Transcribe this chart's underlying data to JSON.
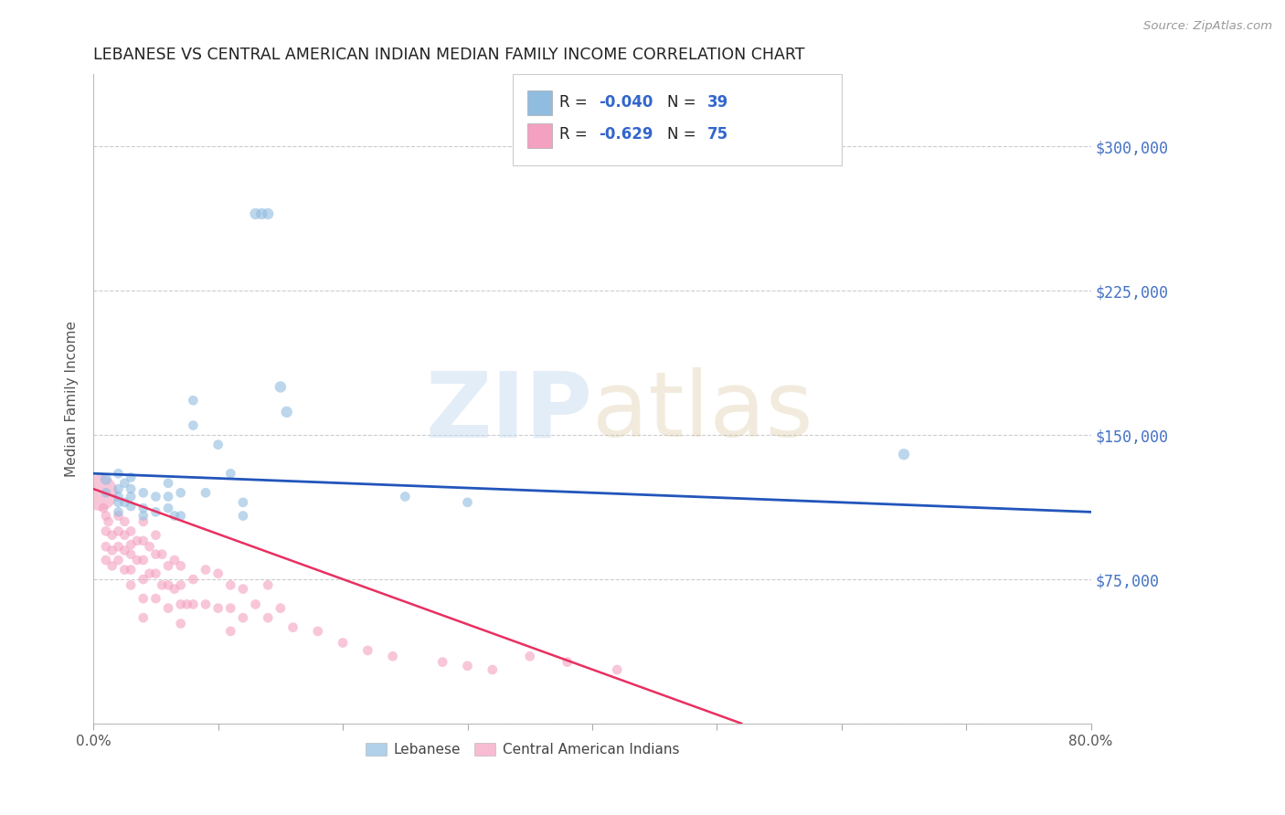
{
  "title": "LEBANESE VS CENTRAL AMERICAN INDIAN MEDIAN FAMILY INCOME CORRELATION CHART",
  "source": "Source: ZipAtlas.com",
  "ylabel": "Median Family Income",
  "xlim": [
    0.0,
    0.8
  ],
  "ylim": [
    0,
    337500
  ],
  "grid_color": "#cccccc",
  "background_color": "#ffffff",
  "legend_R_blue": "-0.040",
  "legend_N_blue": "39",
  "legend_R_pink": "-0.629",
  "legend_N_pink": "75",
  "blue_color": "#90bce0",
  "pink_color": "#f4a0c0",
  "blue_line_color": "#2255bb",
  "pink_line_color": "#e83060",
  "ytick_color": "#4472c4",
  "blue_scatter_x": [
    0.01,
    0.01,
    0.02,
    0.02,
    0.02,
    0.02,
    0.02,
    0.025,
    0.025,
    0.03,
    0.03,
    0.03,
    0.03,
    0.04,
    0.04,
    0.04,
    0.05,
    0.05,
    0.06,
    0.06,
    0.06,
    0.065,
    0.07,
    0.07,
    0.08,
    0.08,
    0.09,
    0.1,
    0.11,
    0.12,
    0.12,
    0.13,
    0.135,
    0.14,
    0.15,
    0.155,
    0.25,
    0.3,
    0.65
  ],
  "blue_scatter_y": [
    127000,
    120000,
    130000,
    122000,
    118000,
    115000,
    110000,
    125000,
    115000,
    128000,
    122000,
    118000,
    113000,
    120000,
    112000,
    108000,
    118000,
    110000,
    125000,
    118000,
    112000,
    108000,
    120000,
    108000,
    168000,
    155000,
    120000,
    145000,
    130000,
    115000,
    108000,
    265000,
    265000,
    265000,
    175000,
    162000,
    118000,
    115000,
    140000
  ],
  "blue_scatter_sizes": [
    80,
    60,
    60,
    60,
    60,
    60,
    60,
    60,
    60,
    60,
    60,
    60,
    60,
    60,
    60,
    60,
    60,
    60,
    60,
    60,
    60,
    60,
    60,
    60,
    60,
    60,
    60,
    60,
    60,
    60,
    60,
    80,
    80,
    80,
    80,
    80,
    60,
    60,
    80
  ],
  "pink_scatter_x": [
    0.005,
    0.008,
    0.01,
    0.01,
    0.01,
    0.01,
    0.012,
    0.015,
    0.015,
    0.015,
    0.02,
    0.02,
    0.02,
    0.02,
    0.025,
    0.025,
    0.025,
    0.025,
    0.03,
    0.03,
    0.03,
    0.03,
    0.03,
    0.035,
    0.035,
    0.04,
    0.04,
    0.04,
    0.04,
    0.04,
    0.04,
    0.045,
    0.045,
    0.05,
    0.05,
    0.05,
    0.05,
    0.055,
    0.055,
    0.06,
    0.06,
    0.06,
    0.065,
    0.065,
    0.07,
    0.07,
    0.07,
    0.07,
    0.075,
    0.08,
    0.08,
    0.09,
    0.09,
    0.1,
    0.1,
    0.11,
    0.11,
    0.11,
    0.12,
    0.12,
    0.13,
    0.14,
    0.14,
    0.15,
    0.16,
    0.18,
    0.2,
    0.22,
    0.24,
    0.28,
    0.3,
    0.32,
    0.35,
    0.38,
    0.42
  ],
  "pink_scatter_y": [
    120000,
    112000,
    108000,
    100000,
    92000,
    85000,
    105000,
    98000,
    90000,
    82000,
    108000,
    100000,
    92000,
    85000,
    105000,
    98000,
    90000,
    80000,
    100000,
    93000,
    88000,
    80000,
    72000,
    95000,
    85000,
    105000,
    95000,
    85000,
    75000,
    65000,
    55000,
    92000,
    78000,
    98000,
    88000,
    78000,
    65000,
    88000,
    72000,
    82000,
    72000,
    60000,
    85000,
    70000,
    82000,
    72000,
    62000,
    52000,
    62000,
    75000,
    62000,
    80000,
    62000,
    78000,
    60000,
    72000,
    60000,
    48000,
    70000,
    55000,
    62000,
    72000,
    55000,
    60000,
    50000,
    48000,
    42000,
    38000,
    35000,
    32000,
    30000,
    28000,
    35000,
    32000,
    28000
  ],
  "pink_scatter_sizes": [
    800,
    60,
    60,
    60,
    60,
    60,
    60,
    60,
    60,
    60,
    60,
    60,
    60,
    60,
    60,
    60,
    60,
    60,
    60,
    60,
    60,
    60,
    60,
    60,
    60,
    60,
    60,
    60,
    60,
    60,
    60,
    60,
    60,
    60,
    60,
    60,
    60,
    60,
    60,
    60,
    60,
    60,
    60,
    60,
    60,
    60,
    60,
    60,
    60,
    60,
    60,
    60,
    60,
    60,
    60,
    60,
    60,
    60,
    60,
    60,
    60,
    60,
    60,
    60,
    60,
    60,
    60,
    60,
    60,
    60,
    60,
    60,
    60,
    60,
    60
  ],
  "blue_line_x": [
    0.0,
    0.8
  ],
  "blue_line_y": [
    130000,
    110000
  ],
  "pink_line_x": [
    0.0,
    0.52
  ],
  "pink_line_y": [
    122000,
    0
  ]
}
